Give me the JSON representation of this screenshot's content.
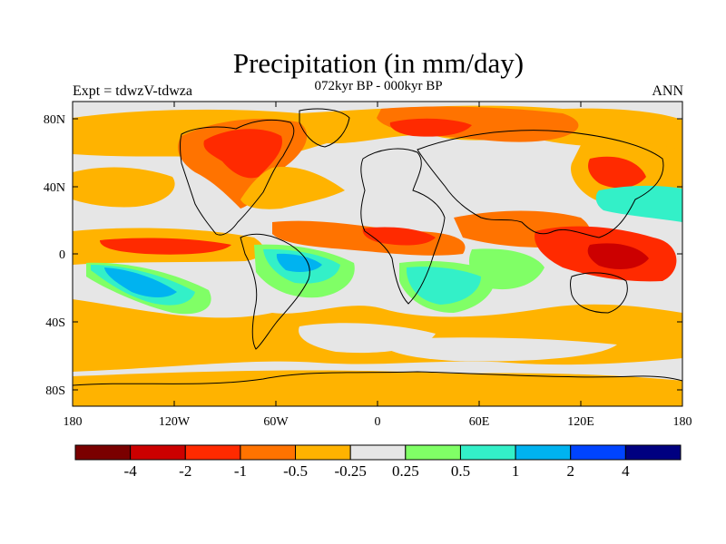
{
  "title": "Precipitation (in mm/day)",
  "left_string": "Expt = tdwzV-tdwza",
  "center_string": "072kyr BP - 000kyr BP",
  "right_string": "ANN",
  "axes": {
    "y_ticks": [
      "80N",
      "40N",
      "0",
      "40S",
      "80S"
    ],
    "x_ticks": [
      "180",
      "120W",
      "60W",
      "0",
      "60E",
      "120E",
      "180"
    ]
  },
  "colorbar": {
    "colors": [
      "#7a0000",
      "#cc0000",
      "#ff2a00",
      "#ff7300",
      "#ffb300",
      "#e6e6e6",
      "#80ff66",
      "#33f0c8",
      "#00b3f0",
      "#0044ff",
      "#000080"
    ],
    "labels": [
      "-4",
      "-2",
      "-1",
      "-0.5",
      "-0.25",
      "0.25",
      "0.5",
      "1",
      "2",
      "4"
    ]
  },
  "colors": {
    "background": "#e6e6e6",
    "coast": "#000000"
  }
}
